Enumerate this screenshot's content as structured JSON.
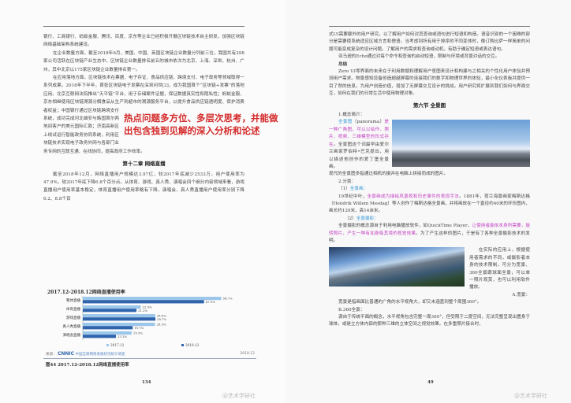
{
  "left_page": {
    "paragraphs": [
      "银行、工商银行、蚂蚁金服、腾讯、百度、京东等企业已经积极开展区块链技术自主研发，加强区块链网络基础架构系统建设。",
      "在企业数量方面，截至2018年6月，美国、中国、英国区块链企业数量分列前三位，我国共有298家公司活跃在区块链产业生态中。区块链企业数量排名前五的城市依次为北京、上海、深圳、杭州、广州，其中北京以175家区块链企业数量排名第一。",
      "在应用落地方面，区块链技术在票据、电子存证、食品供应链、跨境支付、电子政务等领域取得一系列成果。2018年下半年，首张区块链电子发票在深圳问世[2]，成为我国首个“区块链+发票”的落地应用。北京互联网法院推出“天平链”平台，用于存储案件证据，保证数据真实性和隐私性；蚂蚁金服、京东相继使用区块链溯源分解食品从生产到超市的溯源服务平台，以提升食品供应链透明度、保护消费者权益；中国银行通过区块链跨境支付系统，成功完成河北雄安与韩国首尔两地间客户的美元国际汇款；济南高新区上线试运行智能政务协同系统，利用区块链技术实现电子政务外网与各部门业务专网的互联互通、在线协同，提高政府工作效率。"
    ],
    "chapter_title": "第十二章  网络直播",
    "chapter_para": "截至2018年12月，网络直播用户规模达3.97亿，较2017年底减少2533万，用户使用率为47.9%，较2017年底下降6.8个百分点。从体育、游戏、真人秀、演唱会四个细分内容领域来看，游戏直播用户使用率基本稳定，体育直播用户使用率略有下降，演唱会、真人秀直播用户使用率分别下降6.2、8.8个百",
    "overlay_text": [
      "热点问题多方位、多层次思考，并能做",
      "出包含独到见解的深入分析和论述"
    ],
    "figure_caption": "图44   2017.12-2018.12网络直播使用率",
    "page_number": "134",
    "watermark": "@艺术学研社"
  },
  "chart_data": {
    "type": "bar",
    "orientation": "horizontal",
    "title": "2017.12-2018.12网络直播使用率",
    "categories": [
      "整体直播",
      "体育直播",
      "游戏直播",
      "真人秀直播",
      "演唱会直播"
    ],
    "series": [
      {
        "name": "2017.12",
        "values": [
          54.7,
          22.9,
          28.6,
          28.5,
          19.3
        ],
        "color": "#9cc7ea"
      },
      {
        "name": "2018.12",
        "values": [
          47.9,
          21.2,
          28.7,
          19.7,
          13.1
        ],
        "color": "#2f64ad"
      }
    ],
    "unit": "%",
    "xlim": [
      0,
      60
    ],
    "legend": "bottom",
    "source_label": "来源：",
    "source_logo": "CNNIC",
    "source_org": "中国互联网络发展状况统计调查",
    "source_date": "2018.12"
  },
  "right_page": {
    "paragraphs": [
      "式UI需要额外的用户研究，以了解用户如何对其查询或语句进行短语和构造。语音识别的一个困难的部分是需要使系统适应区域方言和俚语。当考虑到所有用于排序的不同变体时，像订购比萨一样简单的问题可能变成复杂的设计问题。了解用户的需求和查询或动机，有助于确定短语或表达语句。",
      "亚马逊的Echo通过对每个命令和查询的启动短语，限制与环境或背景对话的交互。"
    ],
    "summary_title": "总结",
    "summary": "Zero UI零界面的未来在于利用数据和理解用户意图来设计和构建与之相关的个性化用户体验并预测用户需求。物景感知设备创造超越屏幕的连接我们的数字和物理世界的体验，最小化仪表板并提供一目了然的信息，为用户创造价值，增加了无屏幕交互设计的挑战。用户研究将扩展到我们如何与界面交互，如何在我们的日常生活中使用物理对象。",
    "section_title": "第六节  全景图",
    "s1": "1.概念简介：",
    "pano_term": "全景图",
    "pano_en": "（panorama）",
    "pano_def": "是一种广角图，可以以绘作、照片、视频、三维模型的形式存在",
    "pano_rest": "。全景图这个词最早由爱尔兰画家罗伯特•巴克提出，用以描述他创作的爱丁堡全景画。",
    "pano_modern": "现代的全景图多指通过相机的摄并在电脑上拼接而成的图片。",
    "s2": "2.分类：",
    "c1_num": "（1）",
    "c1": "全景画：",
    "c1_a": "19世纪中叶，",
    "c1_hl": "全景画成为描绘风景观和历史事件的表现手法",
    "c1_b": "。1881年，荷兰海景画家梅斯达格（Hendrik Willem Mesdag）等人创作了梅斯达格全景画，并将画放在一个直径约40米的环形图内，画长约120米，高14余米。",
    "c2_num": "（2）",
    "c2": "全景摄影：",
    "c2_a": "全景摄影的概念源自于利用电脑播放软件，如QuickTime Player，",
    "c2_hl": "让使用者能依本身所需要，旋转照片，产生一种有如身临其境的视觉效果",
    "c2_b": "。为了产生这样的图片，于是有了各种全景摄影技术的发明。",
    "apply": "在实际的应用上，根据使用者需求的不同，或摄影者本身的技术限制，可分为宽景、360全景跟球面全景，可以单一照片观赏，也可以利用软件播放。",
    "a_title": "A.宽景：",
    "a_text": "宽景是指画面比普通的广角的水平视角大，却又未涵盖到整个周围360°。",
    "b_title": "B.360全景：",
    "b_text": "源自于传统平面的概念，水平视角包含完整一周360°，但受限于二度空间，无法完整呈现出置身于球体，或是立方体内部的那种三维的立体空间之视觉效果。在多重照片接合时，",
    "page_number": "49",
    "watermark": "@艺术学研社"
  }
}
